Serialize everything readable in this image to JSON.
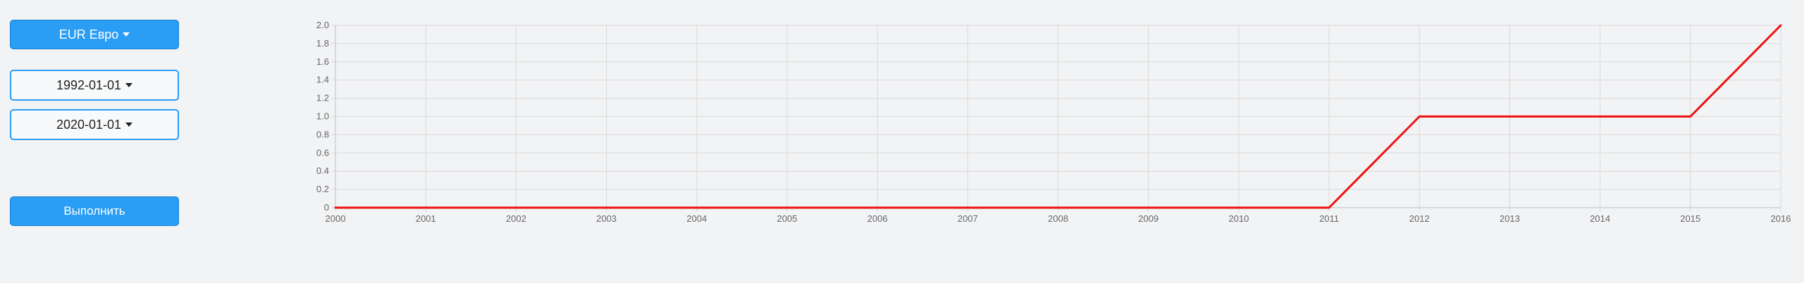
{
  "controls": {
    "currency_label": "EUR Евро",
    "date_from_label": "1992-01-01",
    "date_to_label": "2020-01-01",
    "run_label": "Выполнить"
  },
  "colors": {
    "primary": "#2a9df4",
    "line": "#ee1111",
    "grid": "#d9d9d9"
  },
  "chart_data": {
    "type": "line",
    "categories": [
      "2000",
      "2001",
      "2002",
      "2003",
      "2004",
      "2005",
      "2006",
      "2007",
      "2008",
      "2009",
      "2010",
      "2011",
      "2012",
      "2013",
      "2014",
      "2015",
      "2016"
    ],
    "series": [
      {
        "values": [
          0,
          0,
          0,
          0,
          0,
          0,
          0,
          0,
          0,
          0,
          0,
          0,
          1,
          1,
          1,
          1,
          2
        ],
        "color": "#ee1111"
      }
    ],
    "yticks": [
      "0",
      "0.2",
      "0.4",
      "0.6",
      "0.8",
      "1.0",
      "1.2",
      "1.4",
      "1.6",
      "1.8",
      "2.0"
    ],
    "ylim": [
      0,
      2
    ],
    "grid": true,
    "legend": "none"
  }
}
